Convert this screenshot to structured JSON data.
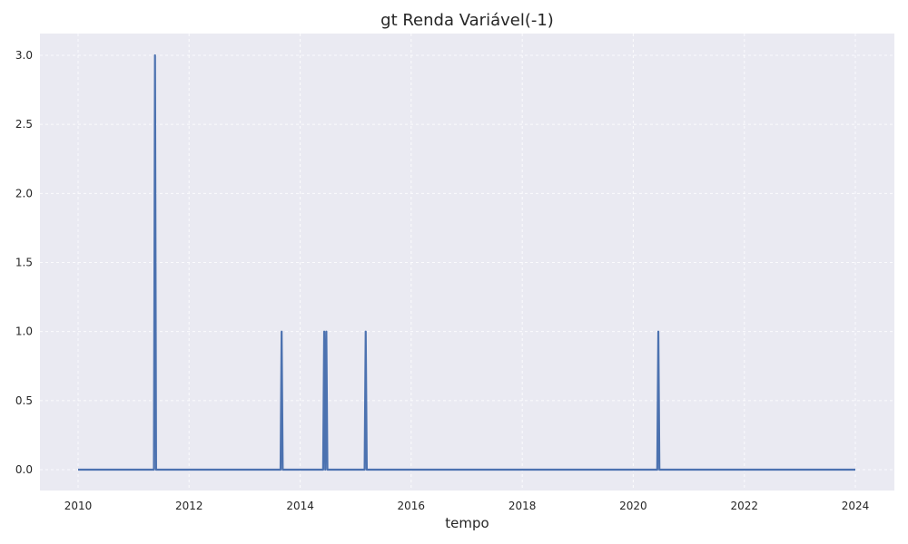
{
  "chart_data": {
    "type": "line",
    "title": "gt Renda Variável(-1)",
    "xlabel": "tempo",
    "ylabel": "",
    "x_range": [
      "2010-01-01",
      "2024-01-01"
    ],
    "ylim": [
      -0.15,
      3.15
    ],
    "x_ticks": [
      "2010",
      "2012",
      "2014",
      "2016",
      "2018",
      "2020",
      "2022",
      "2024"
    ],
    "y_ticks": [
      "0.0",
      "0.5",
      "1.0",
      "1.5",
      "2.0",
      "2.5",
      "3.0"
    ],
    "grid": true,
    "background": "#eaeaf2",
    "series": [
      {
        "color": "#4c72b0",
        "points": [
          {
            "x": "2010-01-01",
            "y": 0
          },
          {
            "x": "2011-05-15",
            "y": 0
          },
          {
            "x": "2011-05-22",
            "y": 3
          },
          {
            "x": "2011-05-29",
            "y": 0
          },
          {
            "x": "2013-08-25",
            "y": 0
          },
          {
            "x": "2013-09-01",
            "y": 1
          },
          {
            "x": "2013-09-08",
            "y": 0
          },
          {
            "x": "2014-06-01",
            "y": 0
          },
          {
            "x": "2014-06-08",
            "y": 1
          },
          {
            "x": "2014-06-15",
            "y": 0
          },
          {
            "x": "2014-06-22",
            "y": 1
          },
          {
            "x": "2014-06-29",
            "y": 0
          },
          {
            "x": "2015-03-01",
            "y": 0
          },
          {
            "x": "2015-03-08",
            "y": 1
          },
          {
            "x": "2015-03-15",
            "y": 0
          },
          {
            "x": "2020-06-07",
            "y": 0
          },
          {
            "x": "2020-06-14",
            "y": 1
          },
          {
            "x": "2020-06-21",
            "y": 0
          },
          {
            "x": "2024-01-01",
            "y": 0
          }
        ]
      }
    ]
  }
}
